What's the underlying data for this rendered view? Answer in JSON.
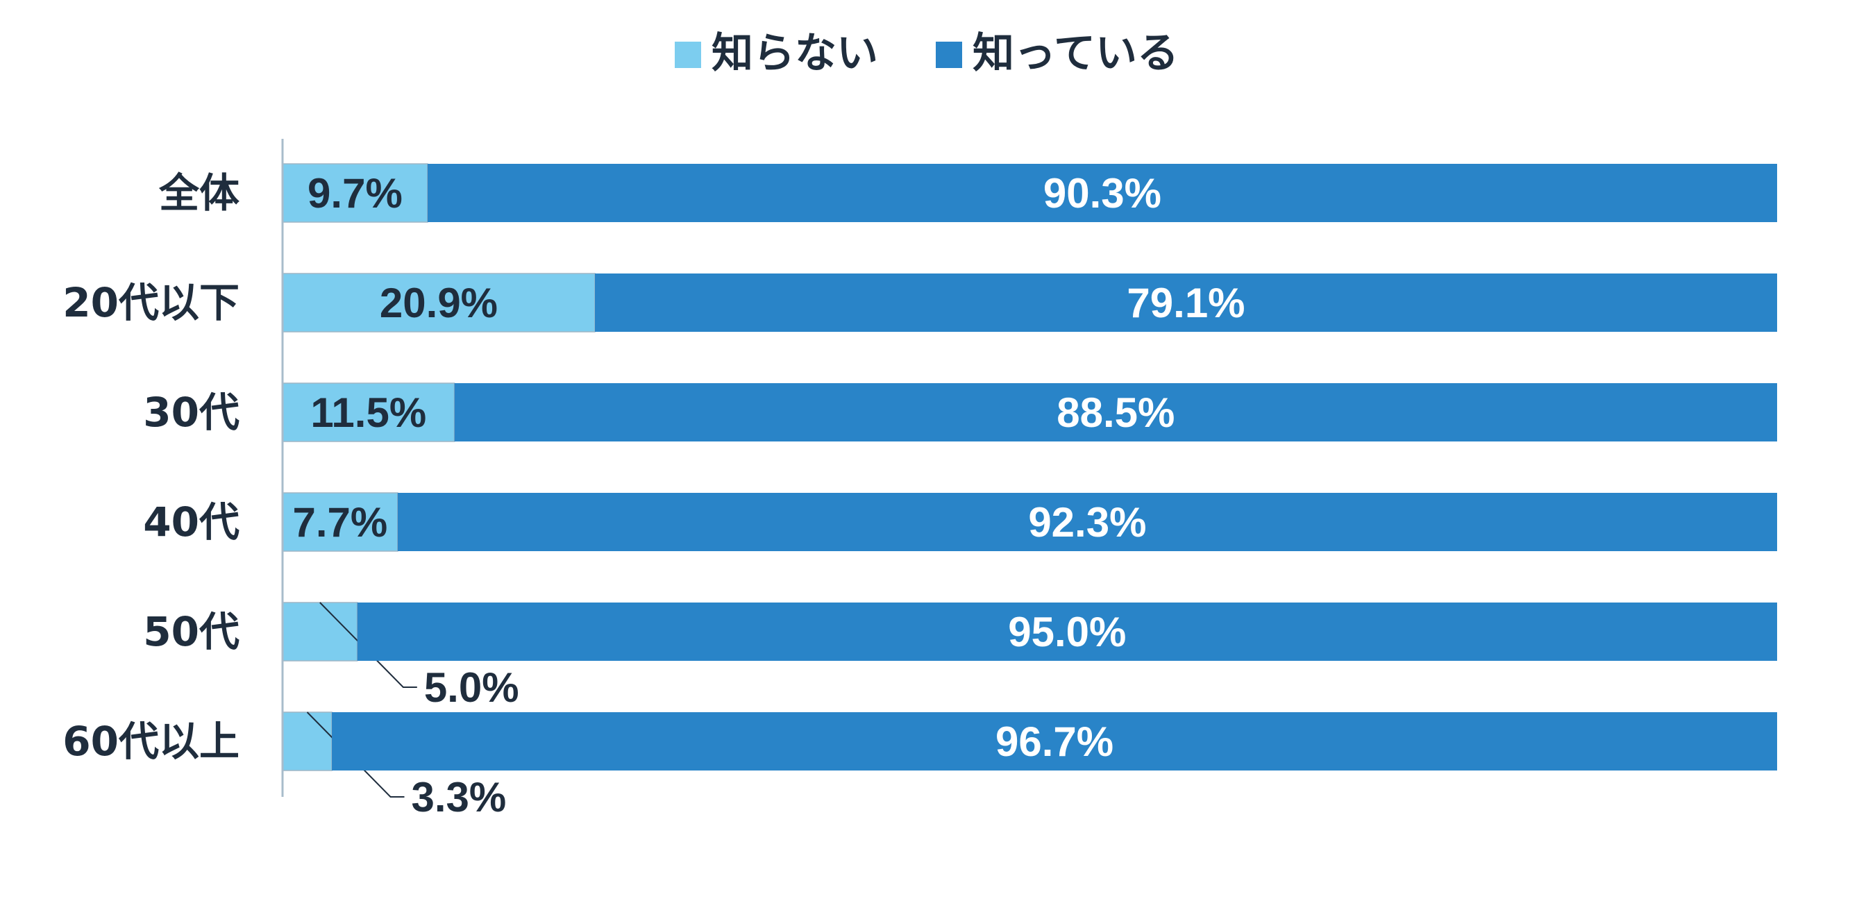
{
  "chart_data": {
    "type": "bar",
    "orientation": "horizontal",
    "stacked": "100%",
    "categories": [
      "全体",
      "20代以下",
      "30代",
      "40代",
      "50代",
      "60代以上"
    ],
    "series": [
      {
        "name": "知らない",
        "values": [
          9.7,
          20.9,
          11.5,
          7.7,
          5.0,
          3.3
        ],
        "labels": [
          "9.7%",
          "20.9%",
          "11.5%",
          "7.7%",
          "5.0%",
          "3.3%"
        ]
      },
      {
        "name": "知っている",
        "values": [
          90.3,
          79.1,
          88.5,
          92.3,
          95.0,
          96.7
        ],
        "labels": [
          "90.3%",
          "79.1%",
          "88.5%",
          "92.3%",
          "95.0%",
          "96.7%"
        ]
      }
    ],
    "xlim": [
      0,
      100
    ],
    "title": "",
    "xlabel": "",
    "ylabel": "",
    "grid": false,
    "legend": "top-center",
    "colors": [
      "#7ccdef",
      "#2984c8"
    ]
  }
}
